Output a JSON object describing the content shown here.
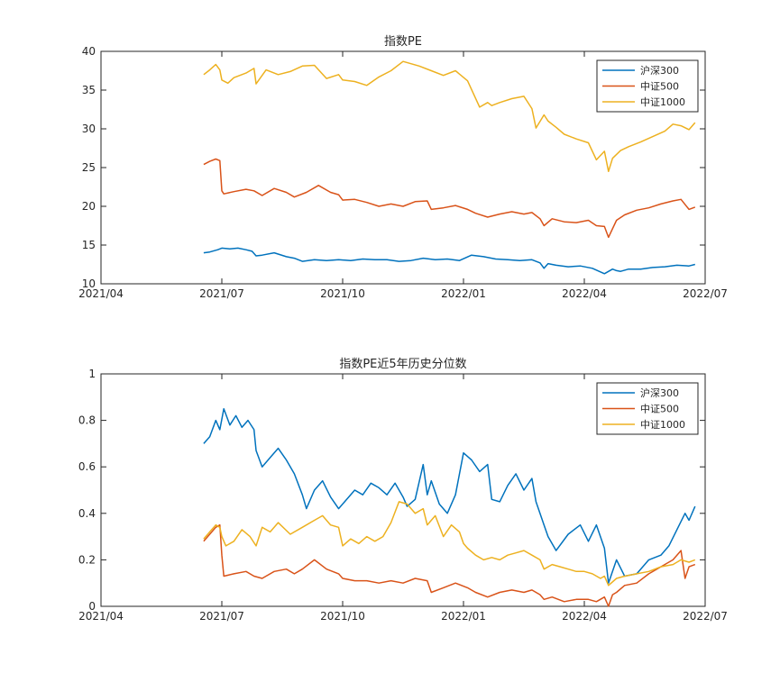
{
  "figure": {
    "colors": {
      "hs300": "#0072BD",
      "zz500": "#D95319",
      "zz1000": "#EDB120",
      "axis": "#262626",
      "background": "#ffffff"
    }
  },
  "chart_data": [
    {
      "type": "line",
      "title": "指数PE",
      "xlabel": "",
      "ylabel": "",
      "xlim": [
        "2021/04",
        "2022/07"
      ],
      "ylim": [
        10,
        40
      ],
      "x_ticks": [
        0,
        3,
        6,
        9,
        12,
        15
      ],
      "x_tick_labels": [
        "2021/04",
        "2021/07",
        "2021/10",
        "2022/01",
        "2022/04",
        "2022/07"
      ],
      "y_ticks": [
        10,
        15,
        20,
        25,
        30,
        35,
        40
      ],
      "y_tick_labels": [
        "10",
        "15",
        "20",
        "25",
        "30",
        "35",
        "40"
      ],
      "x_unit": "months since 2021/04",
      "grid": false,
      "legend_location": "top-right",
      "series": [
        {
          "name": "沪深300",
          "color": "#0072BD",
          "x": [
            2.55,
            2.7,
            2.9,
            3.0,
            3.2,
            3.4,
            3.6,
            3.75,
            3.85,
            4.0,
            4.3,
            4.6,
            4.8,
            5.0,
            5.3,
            5.6,
            5.9,
            6.2,
            6.5,
            6.8,
            7.1,
            7.4,
            7.7,
            8.0,
            8.3,
            8.6,
            8.9,
            9.2,
            9.5,
            9.8,
            10.1,
            10.4,
            10.7,
            10.9,
            11.0,
            11.1,
            11.3,
            11.6,
            11.9,
            12.2,
            12.5,
            12.7,
            12.8,
            12.9,
            13.1,
            13.4,
            13.7,
            14.0,
            14.3,
            14.6,
            14.75
          ],
          "values": [
            14.0,
            14.1,
            14.4,
            14.6,
            14.5,
            14.6,
            14.4,
            14.2,
            13.6,
            13.7,
            14.0,
            13.5,
            13.3,
            12.9,
            13.1,
            13.0,
            13.1,
            13.0,
            13.2,
            13.1,
            13.1,
            12.9,
            13.0,
            13.3,
            13.1,
            13.2,
            13.0,
            13.7,
            13.5,
            13.2,
            13.1,
            13.0,
            13.1,
            12.7,
            12.0,
            12.6,
            12.4,
            12.2,
            12.3,
            12.0,
            11.3,
            11.9,
            11.7,
            11.6,
            11.9,
            11.9,
            12.1,
            12.2,
            12.4,
            12.3,
            12.5
          ]
        },
        {
          "name": "中证500",
          "color": "#D95319",
          "x": [
            2.55,
            2.7,
            2.85,
            2.95,
            3.0,
            3.05,
            3.3,
            3.6,
            3.8,
            4.0,
            4.3,
            4.6,
            4.8,
            5.1,
            5.4,
            5.7,
            5.9,
            6.0,
            6.3,
            6.6,
            6.9,
            7.2,
            7.5,
            7.8,
            8.1,
            8.2,
            8.5,
            8.8,
            9.1,
            9.3,
            9.6,
            9.9,
            10.2,
            10.5,
            10.7,
            10.9,
            11.0,
            11.2,
            11.5,
            11.8,
            12.1,
            12.3,
            12.5,
            12.6,
            12.8,
            13.0,
            13.3,
            13.6,
            13.9,
            14.2,
            14.4,
            14.6,
            14.75
          ],
          "values": [
            25.4,
            25.8,
            26.1,
            25.9,
            22.0,
            21.6,
            21.9,
            22.2,
            22.0,
            21.4,
            22.3,
            21.8,
            21.2,
            21.8,
            22.7,
            21.8,
            21.5,
            20.8,
            20.9,
            20.5,
            20.0,
            20.3,
            20.0,
            20.6,
            20.7,
            19.6,
            19.8,
            20.1,
            19.6,
            19.1,
            18.6,
            19.0,
            19.3,
            19.0,
            19.2,
            18.4,
            17.5,
            18.4,
            18.0,
            17.9,
            18.2,
            17.5,
            17.4,
            16.0,
            18.2,
            18.9,
            19.5,
            19.8,
            20.3,
            20.7,
            20.9,
            19.6,
            19.9
          ]
        },
        {
          "name": "中证1000",
          "color": "#EDB120",
          "x": [
            2.55,
            2.7,
            2.85,
            2.95,
            3.0,
            3.15,
            3.3,
            3.6,
            3.8,
            3.85,
            4.1,
            4.4,
            4.7,
            5.0,
            5.3,
            5.6,
            5.9,
            6.0,
            6.3,
            6.6,
            6.9,
            7.2,
            7.5,
            7.9,
            8.2,
            8.5,
            8.8,
            9.1,
            9.4,
            9.6,
            9.7,
            9.9,
            10.2,
            10.5,
            10.7,
            10.8,
            11.0,
            11.1,
            11.3,
            11.5,
            11.8,
            12.1,
            12.3,
            12.5,
            12.6,
            12.7,
            12.9,
            13.1,
            13.4,
            13.7,
            14.0,
            14.2,
            14.4,
            14.6,
            14.75
          ],
          "values": [
            37.0,
            37.6,
            38.3,
            37.6,
            36.3,
            35.9,
            36.6,
            37.2,
            37.8,
            35.8,
            37.6,
            37.0,
            37.4,
            38.1,
            38.2,
            36.5,
            37.0,
            36.3,
            36.1,
            35.6,
            36.7,
            37.5,
            38.7,
            38.1,
            37.5,
            36.9,
            37.5,
            36.2,
            32.8,
            33.4,
            33.0,
            33.4,
            33.9,
            34.2,
            32.6,
            30.1,
            31.8,
            31.0,
            30.2,
            29.3,
            28.7,
            28.2,
            26.0,
            27.1,
            24.5,
            26.2,
            27.2,
            27.7,
            28.3,
            29.0,
            29.7,
            30.6,
            30.4,
            29.9,
            30.8
          ]
        }
      ]
    },
    {
      "type": "line",
      "title": "指数PE近5年历史分位数",
      "xlabel": "",
      "ylabel": "",
      "xlim": [
        "2021/04",
        "2022/07"
      ],
      "ylim": [
        0,
        1
      ],
      "x_ticks": [
        0,
        3,
        6,
        9,
        12,
        15
      ],
      "x_tick_labels": [
        "2021/04",
        "2021/07",
        "2021/10",
        "2022/01",
        "2022/04",
        "2022/07"
      ],
      "y_ticks": [
        0,
        0.2,
        0.4,
        0.6,
        0.8,
        1
      ],
      "y_tick_labels": [
        "0",
        "0.2",
        "0.4",
        "0.6",
        "0.8",
        "1"
      ],
      "x_unit": "months since 2021/04",
      "grid": false,
      "legend_location": "top-right",
      "series": [
        {
          "name": "沪深300",
          "color": "#0072BD",
          "x": [
            2.55,
            2.7,
            2.85,
            2.95,
            3.05,
            3.2,
            3.35,
            3.5,
            3.65,
            3.8,
            3.85,
            4.0,
            4.2,
            4.4,
            4.6,
            4.8,
            5.0,
            5.1,
            5.3,
            5.5,
            5.7,
            5.9,
            6.1,
            6.3,
            6.5,
            6.7,
            6.9,
            7.1,
            7.3,
            7.5,
            7.6,
            7.8,
            8.0,
            8.1,
            8.2,
            8.4,
            8.6,
            8.8,
            9.0,
            9.2,
            9.4,
            9.6,
            9.7,
            9.9,
            10.1,
            10.3,
            10.5,
            10.7,
            10.8,
            11.0,
            11.1,
            11.3,
            11.6,
            11.9,
            12.1,
            12.3,
            12.5,
            12.6,
            12.8,
            13.0,
            13.3,
            13.6,
            13.9,
            14.1,
            14.3,
            14.5,
            14.6,
            14.75
          ],
          "values": [
            0.7,
            0.73,
            0.8,
            0.76,
            0.85,
            0.78,
            0.82,
            0.77,
            0.8,
            0.76,
            0.67,
            0.6,
            0.64,
            0.68,
            0.63,
            0.57,
            0.48,
            0.42,
            0.5,
            0.54,
            0.47,
            0.42,
            0.46,
            0.5,
            0.48,
            0.53,
            0.51,
            0.48,
            0.53,
            0.47,
            0.43,
            0.46,
            0.61,
            0.48,
            0.54,
            0.44,
            0.4,
            0.48,
            0.66,
            0.63,
            0.58,
            0.61,
            0.46,
            0.45,
            0.52,
            0.57,
            0.5,
            0.55,
            0.45,
            0.35,
            0.3,
            0.24,
            0.31,
            0.35,
            0.28,
            0.35,
            0.25,
            0.1,
            0.2,
            0.13,
            0.14,
            0.2,
            0.22,
            0.26,
            0.33,
            0.4,
            0.37,
            0.43
          ]
        },
        {
          "name": "中证500",
          "color": "#D95319",
          "x": [
            2.55,
            2.7,
            2.85,
            2.95,
            3.0,
            3.05,
            3.3,
            3.6,
            3.8,
            4.0,
            4.3,
            4.6,
            4.8,
            5.0,
            5.3,
            5.6,
            5.9,
            6.0,
            6.3,
            6.6,
            6.9,
            7.2,
            7.5,
            7.8,
            8.1,
            8.2,
            8.5,
            8.8,
            9.1,
            9.3,
            9.6,
            9.9,
            10.2,
            10.5,
            10.7,
            10.9,
            11.0,
            11.2,
            11.5,
            11.8,
            12.1,
            12.3,
            12.5,
            12.6,
            12.7,
            12.8,
            13.0,
            13.3,
            13.6,
            13.9,
            14.2,
            14.4,
            14.5,
            14.6,
            14.75
          ],
          "values": [
            0.28,
            0.31,
            0.34,
            0.35,
            0.22,
            0.13,
            0.14,
            0.15,
            0.13,
            0.12,
            0.15,
            0.16,
            0.14,
            0.16,
            0.2,
            0.16,
            0.14,
            0.12,
            0.11,
            0.11,
            0.1,
            0.11,
            0.1,
            0.12,
            0.11,
            0.06,
            0.08,
            0.1,
            0.08,
            0.06,
            0.04,
            0.06,
            0.07,
            0.06,
            0.07,
            0.05,
            0.03,
            0.04,
            0.02,
            0.03,
            0.03,
            0.02,
            0.04,
            0.0,
            0.05,
            0.06,
            0.09,
            0.1,
            0.14,
            0.17,
            0.2,
            0.24,
            0.12,
            0.17,
            0.18
          ]
        },
        {
          "name": "中证1000",
          "color": "#EDB120",
          "x": [
            2.55,
            2.7,
            2.85,
            2.95,
            3.0,
            3.1,
            3.3,
            3.5,
            3.7,
            3.85,
            4.0,
            4.2,
            4.4,
            4.7,
            5.0,
            5.3,
            5.5,
            5.7,
            5.9,
            6.0,
            6.2,
            6.4,
            6.6,
            6.8,
            7.0,
            7.2,
            7.4,
            7.6,
            7.8,
            8.0,
            8.1,
            8.3,
            8.5,
            8.7,
            8.9,
            9.0,
            9.1,
            9.3,
            9.5,
            9.7,
            9.9,
            10.1,
            10.3,
            10.5,
            10.7,
            10.9,
            11.0,
            11.2,
            11.4,
            11.6,
            11.8,
            12.0,
            12.2,
            12.4,
            12.5,
            12.6,
            12.8,
            13.0,
            13.3,
            13.6,
            13.9,
            14.2,
            14.4,
            14.6,
            14.75
          ],
          "values": [
            0.29,
            0.32,
            0.35,
            0.34,
            0.3,
            0.26,
            0.28,
            0.33,
            0.3,
            0.26,
            0.34,
            0.32,
            0.36,
            0.31,
            0.34,
            0.37,
            0.39,
            0.35,
            0.34,
            0.26,
            0.29,
            0.27,
            0.3,
            0.28,
            0.3,
            0.36,
            0.45,
            0.44,
            0.4,
            0.42,
            0.35,
            0.39,
            0.3,
            0.35,
            0.32,
            0.27,
            0.25,
            0.22,
            0.2,
            0.21,
            0.2,
            0.22,
            0.23,
            0.24,
            0.22,
            0.2,
            0.16,
            0.18,
            0.17,
            0.16,
            0.15,
            0.15,
            0.14,
            0.12,
            0.13,
            0.09,
            0.12,
            0.13,
            0.14,
            0.15,
            0.17,
            0.18,
            0.2,
            0.19,
            0.2
          ]
        }
      ]
    }
  ]
}
